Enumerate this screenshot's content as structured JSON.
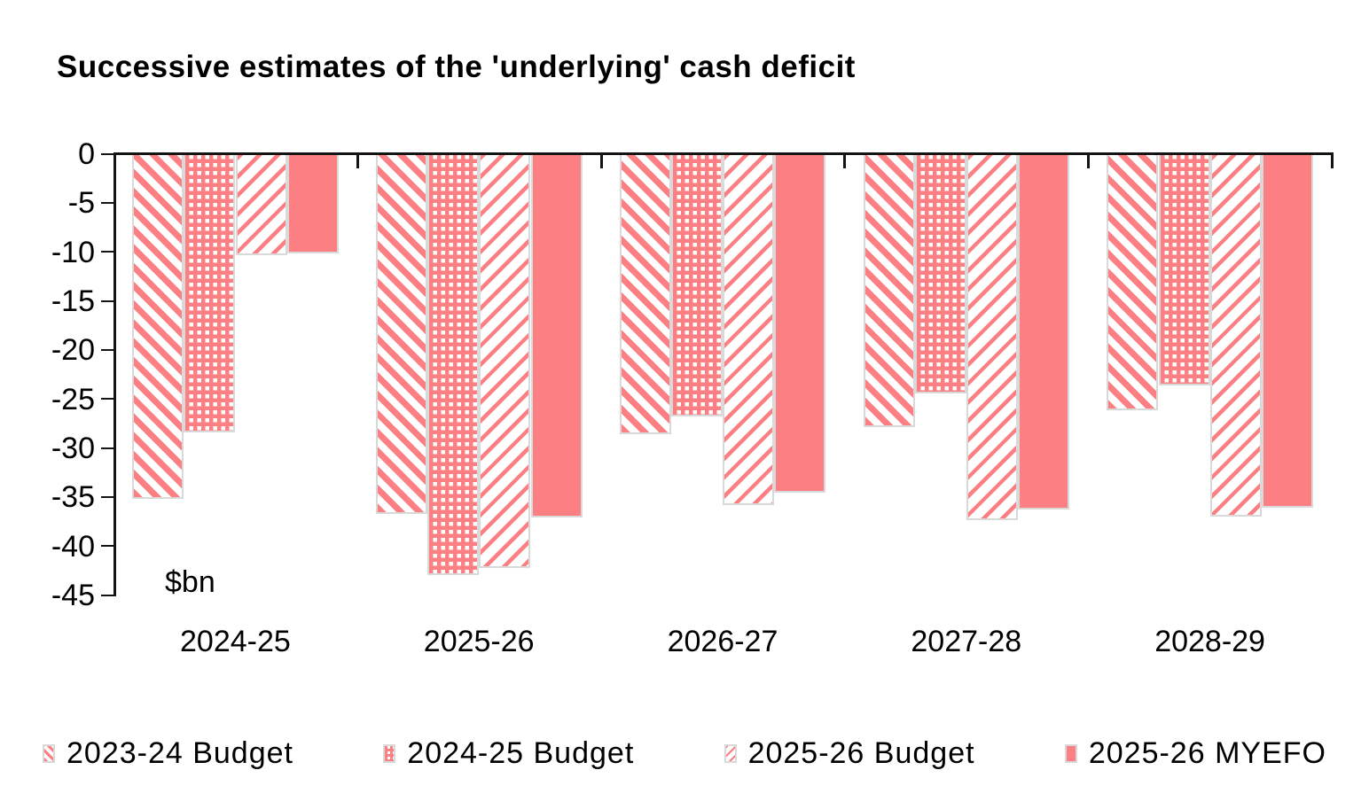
{
  "chart_data": {
    "type": "bar",
    "title": "Successive estimates of the 'underlying' cash deficit",
    "axis_unit_label": "$bn",
    "categories": [
      "2024-25",
      "2025-26",
      "2026-27",
      "2027-28",
      "2028-29"
    ],
    "series": [
      {
        "name": "2023-24 Budget",
        "pattern": "diagonal-down",
        "values": [
          -35.1,
          -36.6,
          -28.5,
          -27.7,
          -26.0
        ]
      },
      {
        "name": "2024-25 Budget",
        "pattern": "dot-grid",
        "values": [
          -28.3,
          -42.8,
          -26.7,
          -24.3,
          -23.5
        ]
      },
      {
        "name": "2025-26 Budget",
        "pattern": "diagonal-up",
        "values": [
          -10.2,
          -42.1,
          -35.7,
          -37.2,
          -36.9
        ]
      },
      {
        "name": "2025-26 MYEFO",
        "pattern": "solid",
        "values": [
          -10.0,
          -37.0,
          -34.4,
          -36.1,
          -36.0
        ]
      }
    ],
    "yticks": [
      0,
      -5,
      -10,
      -15,
      -20,
      -25,
      -30,
      -35,
      -40,
      -45
    ],
    "ylim": [
      -45,
      0
    ],
    "grid": false,
    "legend_position": "bottom",
    "colors": {
      "bar": "#FC7F83",
      "bar_border": "#D9D9D9",
      "axis": "#141414",
      "text": "#000000"
    }
  }
}
